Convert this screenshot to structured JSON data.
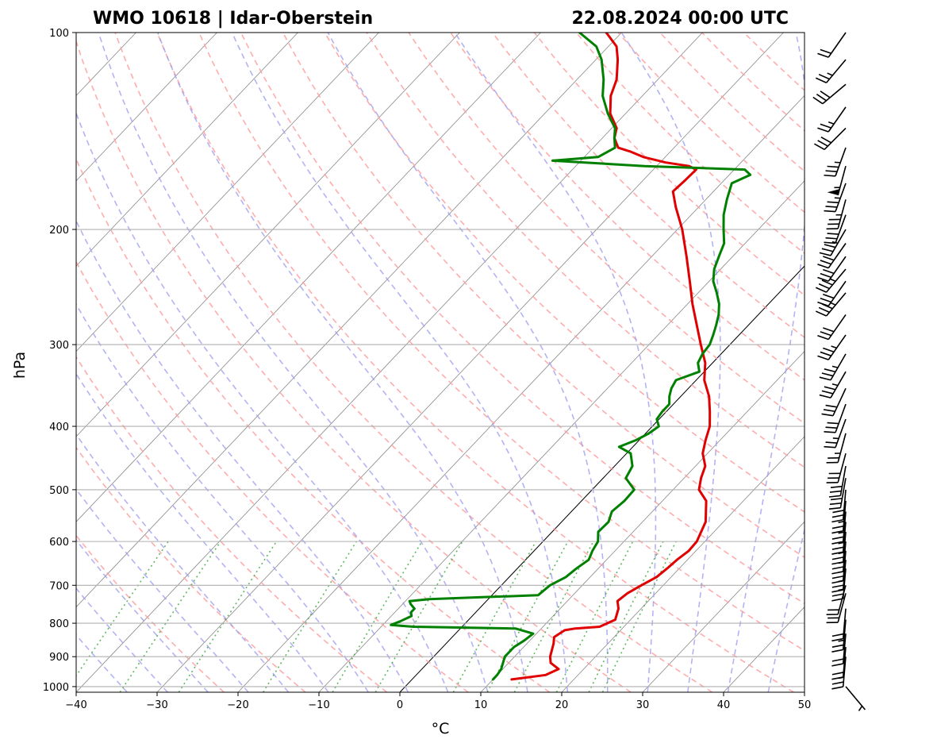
{
  "chart_data": {
    "type": "line",
    "subtype": "skew-T log-p diagram",
    "title_left": "WMO 10618 | Idar-Oberstein",
    "title_right": "22.08.2024 00:00 UTC",
    "xlabel": "°C",
    "ylabel": "hPa",
    "xlim": [
      -40,
      50
    ],
    "ylim": [
      1020,
      100
    ],
    "y_scale": "log",
    "x_ticks": [
      "−40",
      "−30",
      "−20",
      "−10",
      "0",
      "10",
      "20",
      "30",
      "40",
      "50"
    ],
    "y_ticks": [
      "100",
      "200",
      "300",
      "400",
      "500",
      "600",
      "700",
      "800",
      "900",
      "1000"
    ],
    "grid": "horizontal lines at labeled pressure levels",
    "background_lines": {
      "isotherms": "thin grey solid, skewed",
      "dry_adiabats": "red dashed",
      "moist_adiabats": "blue dashed",
      "mixing_ratio_lines": "green dotted",
      "reference_isotherm_0C": "thin black solid"
    },
    "series": [
      {
        "role": "temperature",
        "color": "#e00000",
        "points": [
          [
            975,
            12.3
          ],
          [
            960,
            16
          ],
          [
            940,
            16.9
          ],
          [
            920,
            15.2
          ],
          [
            900,
            14.4
          ],
          [
            860,
            13.3
          ],
          [
            840,
            12.6
          ],
          [
            820,
            13.1
          ],
          [
            815,
            14.2
          ],
          [
            810,
            17
          ],
          [
            790,
            18.1
          ],
          [
            760,
            17.2
          ],
          [
            740,
            16.2
          ],
          [
            720,
            16.5
          ],
          [
            700,
            17.3
          ],
          [
            680,
            18.2
          ],
          [
            660,
            18.5
          ],
          [
            640,
            18.7
          ],
          [
            620,
            19.1
          ],
          [
            600,
            19
          ],
          [
            560,
            17.8
          ],
          [
            520,
            15.4
          ],
          [
            500,
            13.2
          ],
          [
            480,
            12.1
          ],
          [
            460,
            11.2
          ],
          [
            440,
            9.4
          ],
          [
            420,
            8.2
          ],
          [
            400,
            7.1
          ],
          [
            380,
            5.4
          ],
          [
            360,
            3.5
          ],
          [
            340,
            1
          ],
          [
            320,
            -0.9
          ],
          [
            300,
            -3.6
          ],
          [
            280,
            -6.4
          ],
          [
            260,
            -9.4
          ],
          [
            240,
            -12.4
          ],
          [
            220,
            -15.7
          ],
          [
            200,
            -19.4
          ],
          [
            185,
            -22.8
          ],
          [
            175,
            -25
          ],
          [
            168,
            -24.8
          ],
          [
            162,
            -24.7
          ],
          [
            160,
            -26
          ],
          [
            158,
            -29.3
          ],
          [
            155,
            -32.7
          ],
          [
            152,
            -35
          ],
          [
            150,
            -36.9
          ],
          [
            145,
            -38.5
          ],
          [
            140,
            -39.4
          ],
          [
            133,
            -41.9
          ],
          [
            125,
            -43.9
          ],
          [
            118,
            -45.1
          ],
          [
            110,
            -47.3
          ],
          [
            105,
            -49
          ],
          [
            100,
            -51.9
          ]
        ]
      },
      {
        "role": "dewpoint",
        "color": "#008000",
        "points": [
          [
            975,
            10
          ],
          [
            960,
            10
          ],
          [
            940,
            9.8
          ],
          [
            900,
            8.8
          ],
          [
            870,
            8.8
          ],
          [
            850,
            9.3
          ],
          [
            830,
            9.6
          ],
          [
            815,
            6.8
          ],
          [
            810,
            -6
          ],
          [
            805,
            -9
          ],
          [
            795,
            -8.3
          ],
          [
            780,
            -7.5
          ],
          [
            770,
            -8
          ],
          [
            760,
            -8
          ],
          [
            748,
            -9
          ],
          [
            740,
            -9.5
          ],
          [
            735,
            -7.3
          ],
          [
            730,
            -1
          ],
          [
            725,
            5.7
          ],
          [
            700,
            6
          ],
          [
            680,
            7
          ],
          [
            660,
            7.3
          ],
          [
            640,
            7.8
          ],
          [
            620,
            7.2
          ],
          [
            600,
            6.8
          ],
          [
            580,
            5.7
          ],
          [
            560,
            5.8
          ],
          [
            540,
            5
          ],
          [
            520,
            5.3
          ],
          [
            500,
            5.2
          ],
          [
            480,
            2.8
          ],
          [
            460,
            2.2
          ],
          [
            440,
            0.5
          ],
          [
            430,
            -1.7
          ],
          [
            420,
            -0.4
          ],
          [
            410,
            0.4
          ],
          [
            400,
            0.8
          ],
          [
            390,
            -0.3
          ],
          [
            380,
            -0.5
          ],
          [
            370,
            -0.5
          ],
          [
            360,
            -1.4
          ],
          [
            350,
            -2.1
          ],
          [
            340,
            -2.5
          ],
          [
            330,
            -0.6
          ],
          [
            320,
            -1.8
          ],
          [
            310,
            -2.3
          ],
          [
            300,
            -2.5
          ],
          [
            290,
            -3.2
          ],
          [
            280,
            -4
          ],
          [
            270,
            -4.9
          ],
          [
            260,
            -6.1
          ],
          [
            250,
            -7.7
          ],
          [
            240,
            -9.5
          ],
          [
            230,
            -10.8
          ],
          [
            220,
            -11.7
          ],
          [
            210,
            -12.6
          ],
          [
            200,
            -14.3
          ],
          [
            190,
            -16
          ],
          [
            180,
            -17.4
          ],
          [
            170,
            -18.7
          ],
          [
            165,
            -17.4
          ],
          [
            162,
            -18.7
          ],
          [
            160,
            -31.5
          ],
          [
            157,
            -43.5
          ],
          [
            155,
            -38.3
          ],
          [
            150,
            -37.3
          ],
          [
            145,
            -38.5
          ],
          [
            140,
            -39.6
          ],
          [
            133,
            -42.2
          ],
          [
            125,
            -44.9
          ],
          [
            118,
            -46.7
          ],
          [
            110,
            -49.3
          ],
          [
            105,
            -51.5
          ],
          [
            100,
            -55.2
          ]
        ]
      }
    ]
  }
}
